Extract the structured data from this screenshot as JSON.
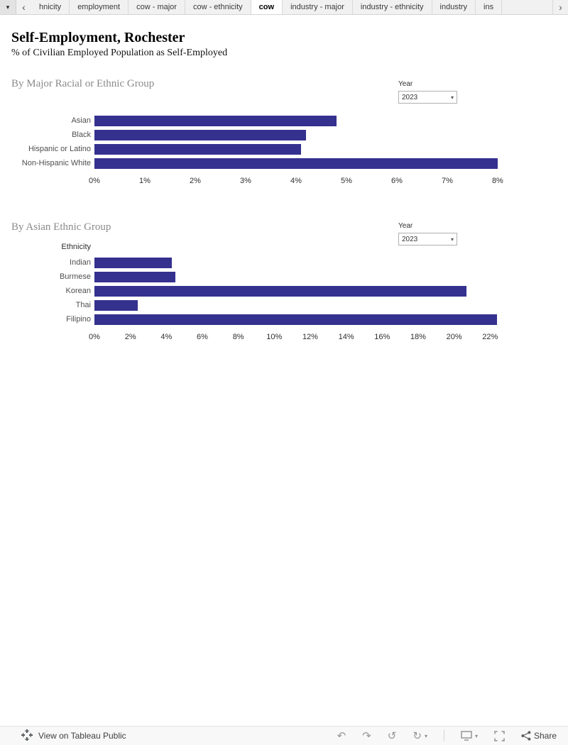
{
  "accent_color": "#35318f",
  "icons": {
    "caret_down": "▾",
    "chevron_left": "‹",
    "chevron_right": "›",
    "undo": "↶",
    "redo": "↷",
    "replay": "↺",
    "refresh": "↻"
  },
  "tab_bar": {
    "tabs": [
      {
        "label": "hnicity",
        "active": false
      },
      {
        "label": "employment",
        "active": false
      },
      {
        "label": "cow - major",
        "active": false
      },
      {
        "label": "cow - ethnicity",
        "active": false
      },
      {
        "label": "cow",
        "active": true
      },
      {
        "label": "industry - major",
        "active": false
      },
      {
        "label": "industry - ethnicity",
        "active": false
      },
      {
        "label": "industry",
        "active": false
      },
      {
        "label": "ins",
        "active": false
      }
    ]
  },
  "header": {
    "title": "Self-Employment,  Rochester",
    "subtitle": "% of Civilian Employed Population as Self-Employed"
  },
  "chart_data": [
    {
      "type": "bar",
      "orientation": "horizontal",
      "title": "By Major Racial or Ethnic Group",
      "filter": {
        "label": "Year",
        "value": "2023"
      },
      "categories": [
        "Asian",
        "Black",
        "Hispanic or Latino",
        "Non-Hispanic White"
      ],
      "values": [
        4.8,
        4.2,
        4.1,
        8.0
      ],
      "unit": "%",
      "axis_max": 8.1,
      "tick_values": [
        0,
        1,
        2,
        3,
        4,
        5,
        6,
        7,
        8
      ],
      "tick_labels": [
        "0%",
        "1%",
        "2%",
        "3%",
        "4%",
        "5%",
        "6%",
        "7%",
        "8%"
      ],
      "bar_color": "#35318f",
      "grid": false,
      "legend": "none"
    },
    {
      "type": "bar",
      "orientation": "horizontal",
      "title": "By Asian Ethnic Group",
      "filter": {
        "label": "Year",
        "value": "2023"
      },
      "axis_header": "Ethnicity",
      "categories": [
        "Indian",
        "Burmese",
        "Korean",
        "Thai",
        "Filipino"
      ],
      "values": [
        4.3,
        4.5,
        20.7,
        2.4,
        22.4
      ],
      "unit": "%",
      "axis_max": 22.7,
      "tick_values": [
        0,
        2,
        4,
        6,
        8,
        10,
        12,
        14,
        16,
        18,
        20,
        22
      ],
      "tick_labels": [
        "0%",
        "2%",
        "4%",
        "6%",
        "8%",
        "10%",
        "12%",
        "14%",
        "16%",
        "18%",
        "20%",
        "22%"
      ],
      "bar_color": "#35318f",
      "grid": false,
      "legend": "none"
    }
  ],
  "toolbar": {
    "view_label": "View on Tableau Public",
    "share_label": "Share"
  }
}
